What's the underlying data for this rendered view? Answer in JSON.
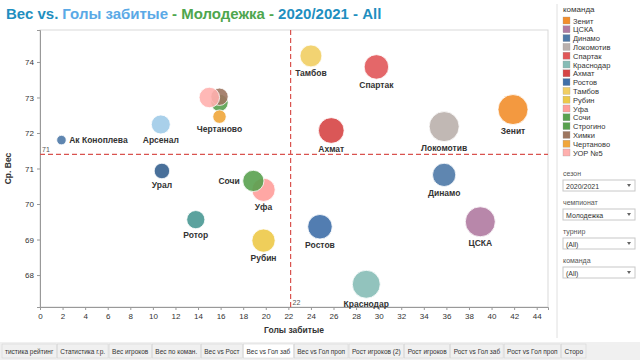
{
  "chart_data": {
    "type": "scatter",
    "title": [
      {
        "text": "Вес vs.",
        "color": "#1f8fc0"
      },
      {
        "text": "Голы забитые",
        "color": "#5aa9e6"
      },
      {
        "text": "- Молодежка -",
        "color": "#4ea64e"
      },
      {
        "text": "2020/2021 - All",
        "color": "#1f8fc0"
      }
    ],
    "x_label": "Голы забитые",
    "y_label": "Ср. Вес",
    "xlim": [
      0,
      45
    ],
    "ylim": [
      67.1,
      74.9
    ],
    "xticks": [
      0,
      2,
      4,
      6,
      8,
      10,
      12,
      14,
      16,
      18,
      20,
      22,
      24,
      26,
      28,
      30,
      32,
      34,
      36,
      38,
      40,
      42,
      44
    ],
    "yticks": [
      68,
      69,
      70,
      71,
      72,
      73,
      74
    ],
    "grid": false,
    "legend_title": "команда",
    "ref_lines": {
      "x": {
        "value": 22.2,
        "label": "22"
      },
      "y": {
        "value": 71.4,
        "label": "71"
      }
    },
    "series": [
      {
        "name": "Зенит",
        "color": "#f28e2b",
        "x": [
          41.9
        ],
        "values": [
          72.66
        ],
        "size": [
          30
        ]
      },
      {
        "name": "ЦСКА",
        "color": "#b07aa1",
        "x": [
          39.0
        ],
        "values": [
          69.5
        ],
        "size": [
          30
        ]
      },
      {
        "name": "Динамо",
        "color": "#4e79a7",
        "x": [
          35.8
        ],
        "values": [
          70.82
        ],
        "size": [
          18
        ]
      },
      {
        "name": "Локомотив",
        "color": "#bab0ac",
        "x": [
          35.8
        ],
        "values": [
          72.18
        ],
        "size": [
          30
        ]
      },
      {
        "name": "Спартак",
        "color": "#e15759",
        "x": [
          29.8
        ],
        "values": [
          73.86
        ],
        "size": [
          20
        ]
      },
      {
        "name": "Краснодар",
        "color": "#86bcb6",
        "x": [
          28.9
        ],
        "values": [
          67.74
        ],
        "size": [
          26
        ]
      },
      {
        "name": "Ахмат",
        "color": "#d64545",
        "x": [
          25.8
        ],
        "values": [
          72.07
        ],
        "size": [
          22
        ]
      },
      {
        "name": "Ростов",
        "color": "#3f6fa8",
        "x": [
          24.8
        ],
        "values": [
          69.36
        ],
        "size": [
          20
        ]
      },
      {
        "name": "Тамбов",
        "color": "#f1ce63",
        "x": [
          24.0
        ],
        "values": [
          74.17
        ],
        "size": [
          16
        ]
      },
      {
        "name": "Рубин",
        "color": "#edc948",
        "x": [
          19.8
        ],
        "values": [
          68.97
        ],
        "size": [
          18
        ]
      },
      {
        "name": "Уфа",
        "color": "#ff9d9a",
        "x": [
          19.8
        ],
        "values": [
          70.4
        ],
        "size": [
          18
        ]
      },
      {
        "name": "Сочи",
        "color": "#59a14f",
        "x": [
          18.9
        ],
        "values": [
          70.65
        ],
        "size": [
          15
        ]
      },
      {
        "name": "Строгино",
        "color": "#59a14f",
        "x": [
          15.9
        ],
        "values": [
          72.85
        ],
        "size": [
          10
        ]
      },
      {
        "name": "Химки",
        "color": "#9d7660",
        "x": [
          15.9
        ],
        "values": [
          73.02
        ],
        "size": [
          10
        ]
      },
      {
        "name": "Чертаново",
        "color": "#f0a63a",
        "x": [
          15.9
        ],
        "values": [
          72.46
        ],
        "size": [
          6
        ]
      },
      {
        "name": "УОР №5",
        "color": "#ffb0ae",
        "x": [
          15.0
        ],
        "values": [
          73.0
        ],
        "size": [
          14
        ]
      },
      {
        "name": "Арсенал",
        "color": "#a0cbe8",
        "x": [
          10.7
        ],
        "values": [
          72.24
        ],
        "size": [
          12
        ]
      },
      {
        "name": "Урал",
        "color": "#35608f",
        "x": [
          10.8
        ],
        "values": [
          70.93
        ],
        "size": [
          8
        ]
      },
      {
        "name": "Ротор",
        "color": "#499894",
        "x": [
          13.8
        ],
        "values": [
          69.56
        ],
        "size": [
          11
        ]
      },
      {
        "name": "Ак Коноплева",
        "color": "#4e79a7",
        "x": [
          1.9
        ],
        "values": [
          71.8
        ],
        "size": [
          3
        ]
      }
    ],
    "point_labels": [
      "Зенит",
      "ЦСКА",
      "Динамо",
      "Локомотив",
      "Спартак",
      "Краснодар",
      "Ахмат",
      "Ростов",
      "Тамбов",
      "Рубин",
      "Уфа",
      "Сочи",
      null,
      null,
      "Чертаново",
      null,
      "Арсенал",
      "Урал",
      "Ротор",
      "Ак Коноплева"
    ]
  },
  "filters": [
    {
      "label": "сезон",
      "value": "2020/2021"
    },
    {
      "label": "чемпионат",
      "value": "Молодежка"
    },
    {
      "label": "турнир",
      "value": "(All)"
    },
    {
      "label": "команда",
      "value": "(All)"
    }
  ],
  "tabs": [
    "тистика рейтинг",
    "Статистика г.р.",
    "Вес игроков",
    "Вес по коман.",
    "Вес vs Рост",
    "Вес vs Гол заб",
    "Вес vs Гол проп",
    "Рост игроков (2)",
    "Рост игроков",
    "Рост vs Гол заб",
    "Рост vs Гол проп",
    "Сторо"
  ]
}
